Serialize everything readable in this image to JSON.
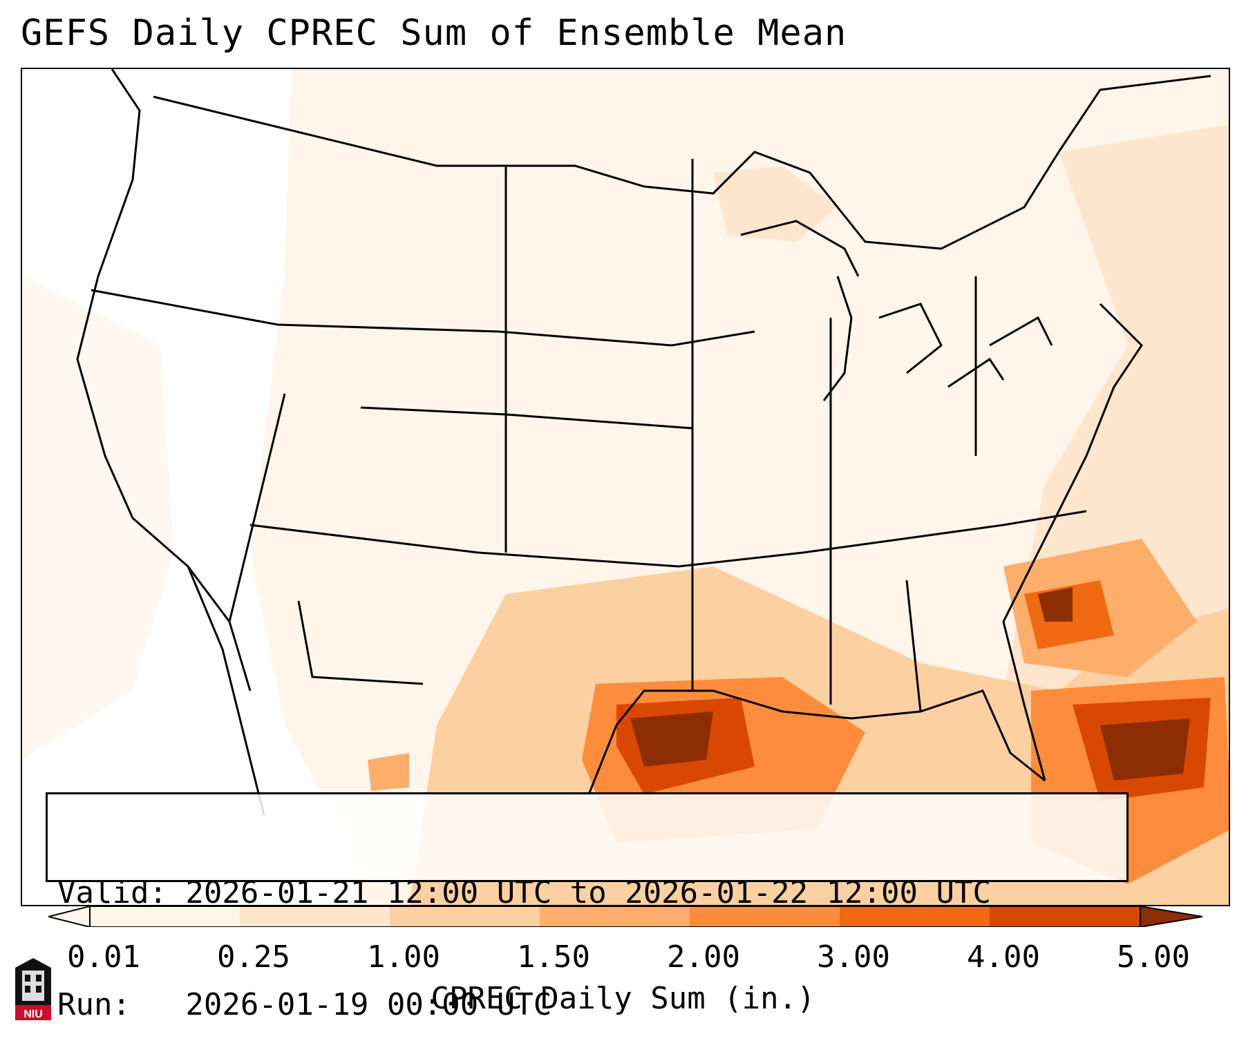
{
  "title": "GEFS Daily CPREC Sum of Ensemble Mean",
  "info": {
    "valid": "Valid: 2026-01-21 12:00 UTC to 2026-01-22 12:00 UTC",
    "run": "Run:   2026-01-19 00:00 UTC"
  },
  "colorbar": {
    "label": "CPREC Daily Sum (in.)",
    "ticks": [
      "0.01",
      "0.25",
      "1.00",
      "1.50",
      "2.00",
      "3.00",
      "4.00",
      "5.00"
    ],
    "colors": [
      "#fff5eb",
      "#fee6ce",
      "#fdd0a2",
      "#fdae6b",
      "#fd8d3c",
      "#f16913",
      "#d94801",
      "#8c2d04"
    ]
  },
  "logo": {
    "text": "NIU",
    "icon": "university-tower-icon"
  }
}
